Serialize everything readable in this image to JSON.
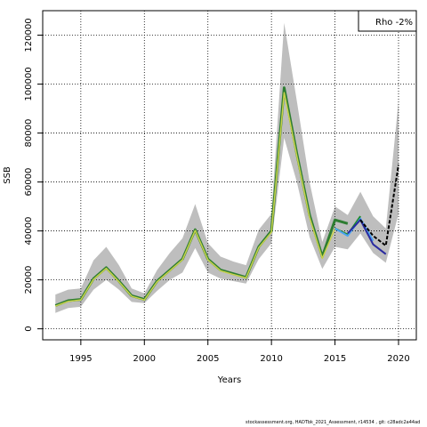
{
  "chart_data": {
    "type": "line",
    "xlabel": "Years",
    "ylabel": "SSB",
    "xlim": [
      1992.0,
      2021.4
    ],
    "ylim": [
      -4500,
      130000
    ],
    "x_ticks": [
      1995,
      2000,
      2005,
      2010,
      2015,
      2020
    ],
    "y_ticks": [
      0,
      20000,
      40000,
      60000,
      80000,
      100000,
      120000
    ],
    "grid": true,
    "legend_position": "top-right",
    "legend_text": "Rho -2%",
    "colors": {
      "band": "#bebebe",
      "main_outer": "#2e7d32",
      "main_inner": "#c8d24a",
      "peel1": "#1a8a2a",
      "peel2": "#4aa3f0",
      "peel3": "#2d7a4a",
      "peel4": "#2a2aa0",
      "forecast": "#000000"
    },
    "band": {
      "x": [
        1993,
        1994,
        1995,
        1996,
        1997,
        1998,
        1999,
        2000,
        2001,
        2002,
        2003,
        2004,
        2005,
        2006,
        2007,
        2008,
        2009,
        2010,
        2011,
        2012,
        2013,
        2014,
        2015,
        2016,
        2017,
        2018,
        2019,
        2020
      ],
      "upper": [
        14000,
        16000,
        16500,
        28000,
        33500,
        26000,
        16500,
        14500,
        24000,
        31000,
        37000,
        51000,
        35000,
        29500,
        27500,
        26000,
        40500,
        47000,
        125000,
        93000,
        60000,
        35500,
        50000,
        46500,
        56000,
        46000,
        41000,
        93000
      ],
      "lower": [
        6500,
        8500,
        9000,
        16000,
        20000,
        16000,
        11000,
        10500,
        15500,
        20000,
        23000,
        33000,
        23000,
        20500,
        19500,
        18500,
        28500,
        35000,
        78000,
        60000,
        37500,
        24500,
        33500,
        32500,
        39000,
        31000,
        27000,
        47000
      ]
    },
    "series": [
      {
        "x": [
          1993,
          1994,
          1995,
          1996,
          1997,
          1998,
          1999,
          2000,
          2001,
          2002,
          2003,
          2004,
          2005,
          2006,
          2007,
          2008,
          2009,
          2010,
          2011,
          2012,
          2013,
          2014,
          2015,
          2016
        ],
        "values": [
          9500,
          11500,
          12000,
          20500,
          25000,
          19500,
          13500,
          12000,
          19500,
          24000,
          28500,
          40500,
          28500,
          24000,
          22500,
          21000,
          33500,
          40000,
          98500,
          71500,
          46500,
          29500,
          44500,
          43000
        ],
        "color": "#2e7d32"
      },
      {
        "x": [
          1993,
          1994,
          1995,
          1996,
          1997,
          1998,
          1999,
          2000,
          2001,
          2002,
          2003,
          2004,
          2005,
          2006,
          2007,
          2008,
          2009,
          2010,
          2011,
          2012,
          2013,
          2014,
          2015
        ],
        "values": [
          9300,
          11200,
          11800,
          20200,
          24700,
          19200,
          13300,
          11800,
          19200,
          23700,
          28200,
          40200,
          28200,
          23700,
          22200,
          20800,
          33200,
          39500,
          96500,
          70500,
          45500,
          28800,
          41000
        ],
        "color": "#c8d24a"
      },
      {
        "x": [
          2015,
          2016,
          2017
        ],
        "values": [
          41000,
          38500,
          46000
        ],
        "color": "#1a8a2a"
      },
      {
        "x": [
          2015,
          2016,
          2017,
          2018
        ],
        "values": [
          41000,
          38000,
          45000,
          36000
        ],
        "color": "#4aa3f0"
      },
      {
        "x": [
          2016,
          2017,
          2018,
          2019
        ],
        "values": [
          39000,
          44500,
          34500,
          30500
        ],
        "color": "#2a2aa0"
      },
      {
        "x": [
          2017,
          2018,
          2019,
          2020
        ],
        "values": [
          44500,
          38000,
          34000,
          67000
        ],
        "color": "#000000",
        "dashed": true
      }
    ]
  },
  "footer": "stockassessment.org, HADTbk_2021_Assessment, r14534 , git: c28adc2a44ad"
}
